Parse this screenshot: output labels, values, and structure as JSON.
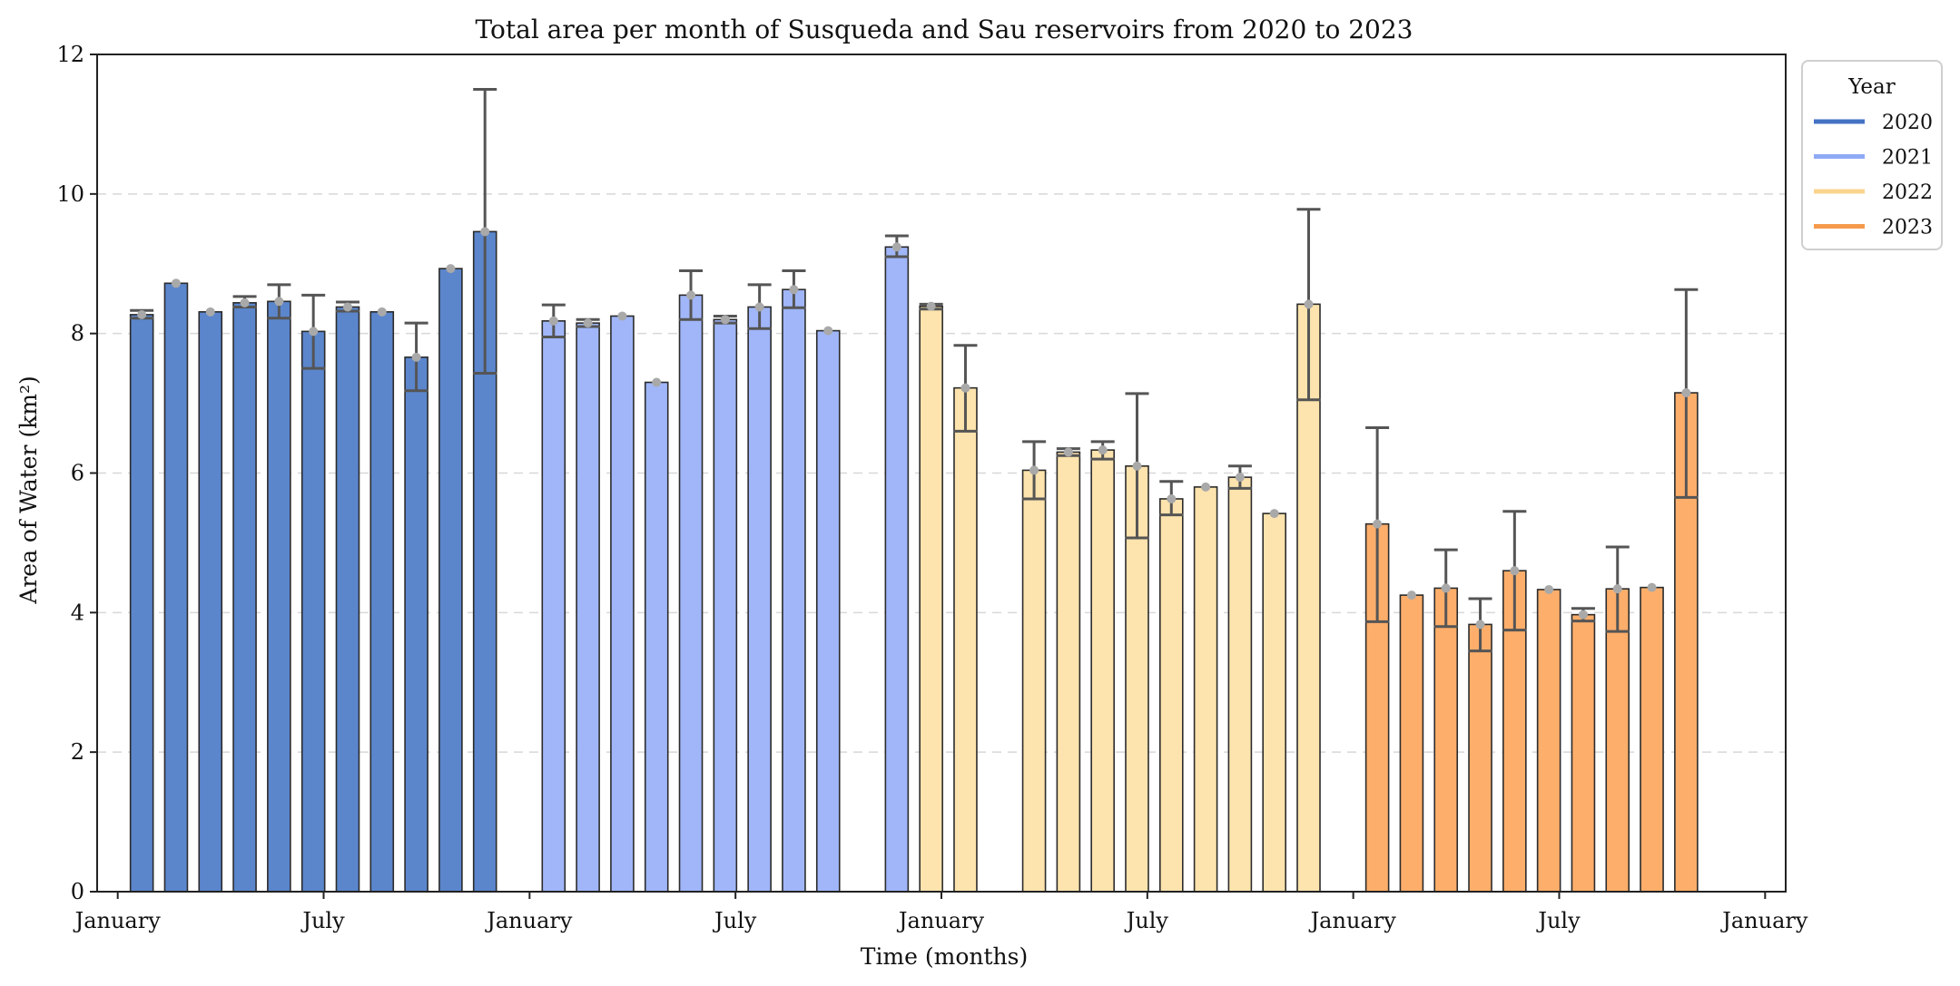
{
  "chart_data": {
    "type": "bar",
    "title": "Total area per month of Susqueda and Sau reservoirs from 2020 to 2023",
    "xlabel": "Time (months)",
    "ylabel": "Area of Water (km²)",
    "ylim": [
      0,
      12
    ],
    "y_ticks": [
      0,
      2,
      4,
      6,
      8,
      10,
      12
    ],
    "x_ticks": [
      {
        "label": "January",
        "pos": 0
      },
      {
        "label": "July",
        "pos": 6
      },
      {
        "label": "January",
        "pos": 12
      },
      {
        "label": "July",
        "pos": 18
      },
      {
        "label": "January",
        "pos": 24
      },
      {
        "label": "July",
        "pos": 30
      },
      {
        "label": "January",
        "pos": 36
      },
      {
        "label": "July",
        "pos": 42
      },
      {
        "label": "January",
        "pos": 48
      }
    ],
    "grid": "horizontal-dashed",
    "legend": {
      "title": "Year",
      "placement": "outside-top-right",
      "entries": [
        {
          "label": "2020",
          "color": "#4472C4"
        },
        {
          "label": "2021",
          "color": "#8FAAF4"
        },
        {
          "label": "2022",
          "color": "#FAD48E"
        },
        {
          "label": "2023",
          "color": "#F59A4C"
        }
      ]
    },
    "series": [
      {
        "name": "2020",
        "fill": "#5B86CC",
        "points": [
          {
            "x": 0.7,
            "value": 8.27,
            "err_low": 8.22,
            "err_high": 8.33
          },
          {
            "x": 1.7,
            "value": 8.72,
            "err_low": null,
            "err_high": null
          },
          {
            "x": 2.7,
            "value": 8.31,
            "err_low": null,
            "err_high": null
          },
          {
            "x": 3.7,
            "value": 8.44,
            "err_low": 8.38,
            "err_high": 8.53
          },
          {
            "x": 4.7,
            "value": 8.46,
            "err_low": 8.22,
            "err_high": 8.7
          },
          {
            "x": 5.7,
            "value": 8.03,
            "err_low": 7.5,
            "err_high": 8.55
          },
          {
            "x": 6.7,
            "value": 8.38,
            "err_low": 8.32,
            "err_high": 8.45
          },
          {
            "x": 7.7,
            "value": 8.31,
            "err_low": null,
            "err_high": null
          },
          {
            "x": 8.7,
            "value": 7.66,
            "err_low": 7.18,
            "err_high": 8.15
          },
          {
            "x": 9.7,
            "value": 8.93,
            "err_low": null,
            "err_high": null
          },
          {
            "x": 10.7,
            "value": 9.46,
            "err_low": 7.43,
            "err_high": 11.5
          }
        ]
      },
      {
        "name": "2021",
        "fill": "#A0B6F8",
        "points": [
          {
            "x": 12.7,
            "value": 8.18,
            "err_low": 7.95,
            "err_high": 8.41
          },
          {
            "x": 13.7,
            "value": 8.15,
            "err_low": 8.1,
            "err_high": 8.2
          },
          {
            "x": 14.7,
            "value": 8.25,
            "err_low": null,
            "err_high": null
          },
          {
            "x": 15.7,
            "value": 7.3,
            "err_low": null,
            "err_high": null
          },
          {
            "x": 16.7,
            "value": 8.55,
            "err_low": 8.2,
            "err_high": 8.9
          },
          {
            "x": 17.7,
            "value": 8.2,
            "err_low": 8.15,
            "err_high": 8.25
          },
          {
            "x": 18.7,
            "value": 8.38,
            "err_low": 8.07,
            "err_high": 8.7
          },
          {
            "x": 19.7,
            "value": 8.63,
            "err_low": 8.37,
            "err_high": 8.9
          },
          {
            "x": 20.7,
            "value": 8.04,
            "err_low": null,
            "err_high": null
          },
          {
            "x": 22.7,
            "value": 9.24,
            "err_low": 9.1,
            "err_high": 9.4
          }
        ]
      },
      {
        "name": "2022",
        "fill": "#FDE3AD",
        "points": [
          {
            "x": 23.7,
            "value": 8.39,
            "err_low": 8.35,
            "err_high": 8.42
          },
          {
            "x": 24.7,
            "value": 7.22,
            "err_low": 6.6,
            "err_high": 7.83
          },
          {
            "x": 26.7,
            "value": 6.04,
            "err_low": 5.63,
            "err_high": 6.45
          },
          {
            "x": 27.7,
            "value": 6.3,
            "err_low": 6.25,
            "err_high": 6.35
          },
          {
            "x": 28.7,
            "value": 6.33,
            "err_low": 6.2,
            "err_high": 6.45
          },
          {
            "x": 29.7,
            "value": 6.1,
            "err_low": 5.07,
            "err_high": 7.14
          },
          {
            "x": 30.7,
            "value": 5.63,
            "err_low": 5.4,
            "err_high": 5.88
          },
          {
            "x": 31.7,
            "value": 5.8,
            "err_low": null,
            "err_high": null
          },
          {
            "x": 32.7,
            "value": 5.94,
            "err_low": 5.78,
            "err_high": 6.1
          },
          {
            "x": 33.7,
            "value": 5.42,
            "err_low": null,
            "err_high": null
          },
          {
            "x": 34.7,
            "value": 8.42,
            "err_low": 7.05,
            "err_high": 9.78
          }
        ]
      },
      {
        "name": "2023",
        "fill": "#FDAE6B",
        "points": [
          {
            "x": 36.7,
            "value": 5.27,
            "err_low": 3.87,
            "err_high": 6.65
          },
          {
            "x": 37.7,
            "value": 4.25,
            "err_low": null,
            "err_high": null
          },
          {
            "x": 38.7,
            "value": 4.35,
            "err_low": 3.8,
            "err_high": 4.9
          },
          {
            "x": 39.7,
            "value": 3.83,
            "err_low": 3.45,
            "err_high": 4.2
          },
          {
            "x": 40.7,
            "value": 4.6,
            "err_low": 3.75,
            "err_high": 5.45
          },
          {
            "x": 41.7,
            "value": 4.33,
            "err_low": null,
            "err_high": null
          },
          {
            "x": 42.7,
            "value": 3.97,
            "err_low": 3.88,
            "err_high": 4.06
          },
          {
            "x": 43.7,
            "value": 4.34,
            "err_low": 3.73,
            "err_high": 4.94
          },
          {
            "x": 44.7,
            "value": 4.36,
            "err_low": null,
            "err_high": null
          },
          {
            "x": 45.7,
            "value": 7.15,
            "err_low": 5.65,
            "err_high": 8.63
          }
        ]
      }
    ]
  }
}
